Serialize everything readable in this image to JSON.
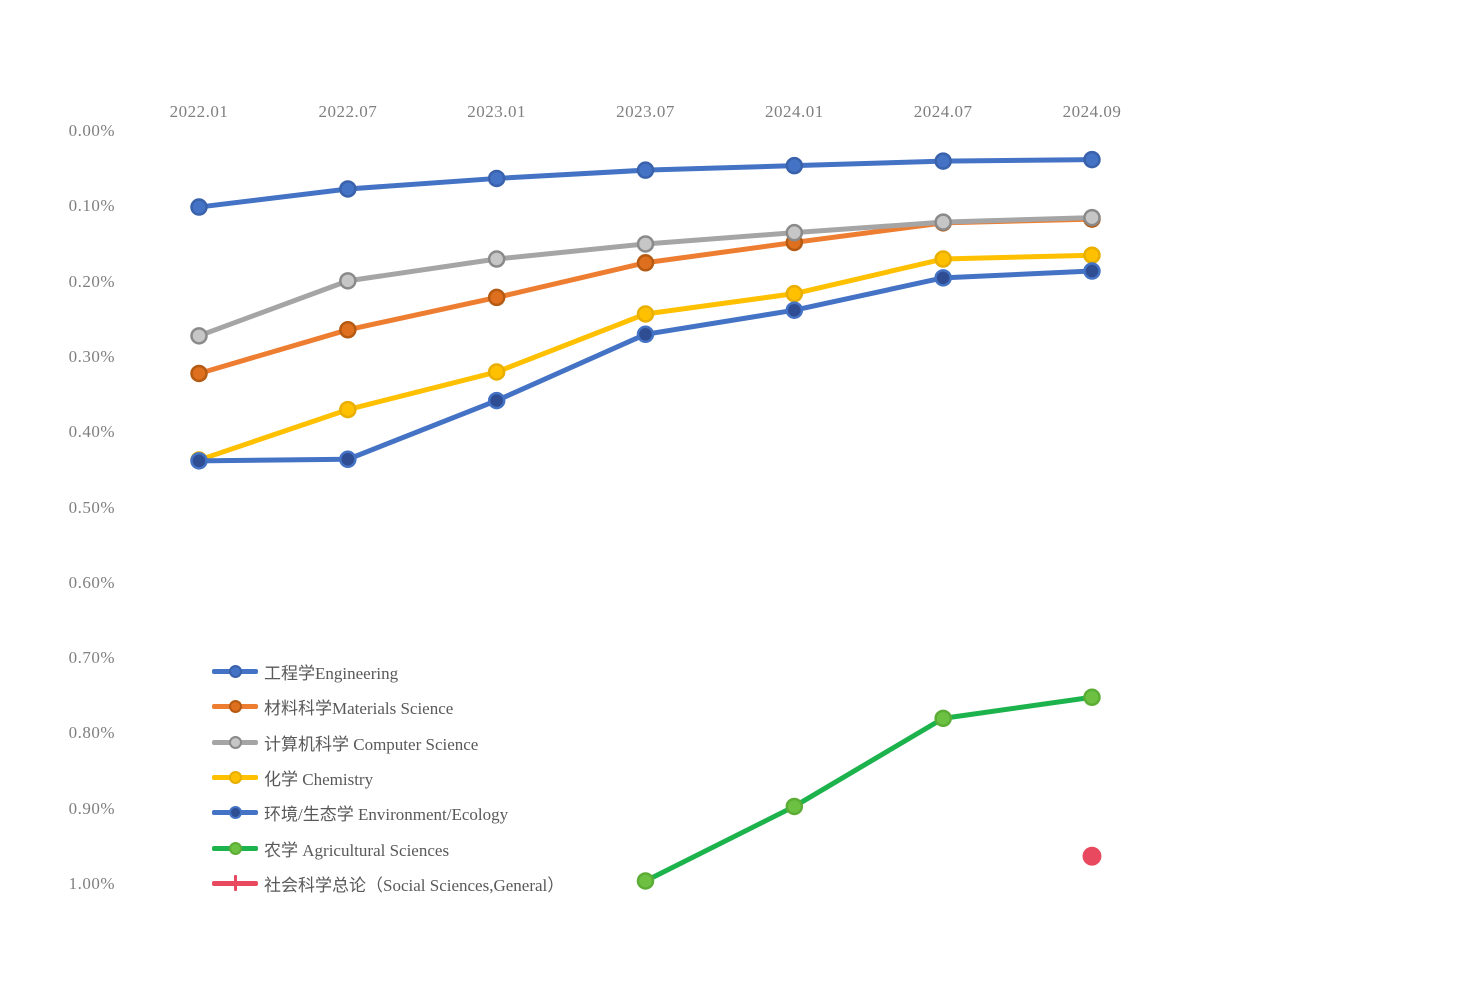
{
  "page": {
    "background_color": "#ffffff",
    "axis_text_color": "#7f7f7f",
    "legend_text_color": "#595959"
  },
  "chart_data": {
    "type": "line",
    "title": "",
    "grid": false,
    "legend_position": "bottom-left-inside",
    "x_axis": {
      "position": "top",
      "categories": [
        "2022.01",
        "2022.07",
        "2023.01",
        "2023.07",
        "2024.01",
        "2024.07",
        "2024.09"
      ]
    },
    "y_axis": {
      "unit": "%",
      "min": 0.0,
      "max": 1.0,
      "tick_step": 0.1,
      "inverted": true,
      "ticks": [
        "0.00%",
        "0.10%",
        "0.20%",
        "0.30%",
        "0.40%",
        "0.50%",
        "0.60%",
        "0.70%",
        "0.80%",
        "0.90%",
        "1.00%"
      ]
    },
    "series": [
      {
        "id": "engineering",
        "label": "工程学Engineering",
        "line_color": "#4472C4",
        "marker": "circle",
        "marker_fill": "#4472C4",
        "marker_stroke": "#3A62AC",
        "values": [
          0.101,
          0.077,
          0.063,
          0.052,
          0.046,
          0.04,
          0.038
        ]
      },
      {
        "id": "materials-science",
        "label": "材料科学Materials Science",
        "line_color": "#ED7D31",
        "marker": "circle",
        "marker_fill": "#DD6F1E",
        "marker_stroke": "#B55A12",
        "values": [
          0.322,
          0.264,
          0.221,
          0.175,
          0.148,
          0.122,
          0.117
        ]
      },
      {
        "id": "computer-science",
        "label": "计算机科学 Computer Science",
        "line_color": "#A5A5A5",
        "marker": "circle",
        "marker_fill": "#C6C6C6",
        "marker_stroke": "#8A8A8A",
        "values": [
          0.272,
          0.199,
          0.17,
          0.15,
          0.135,
          0.121,
          0.115
        ]
      },
      {
        "id": "chemistry",
        "label": "化学 Chemistry",
        "line_color": "#FFC000",
        "marker": "circle",
        "marker_fill": "#FFC000",
        "marker_stroke": "#E8AE00",
        "values": [
          0.437,
          0.37,
          0.32,
          0.243,
          0.216,
          0.17,
          0.165
        ]
      },
      {
        "id": "environment-ecology",
        "label": "环境/生态学 Environment/Ecology",
        "line_color": "#4472C4",
        "marker": "circle",
        "marker_fill": "#2F4D93",
        "marker_stroke": "#4472C4",
        "values": [
          0.438,
          0.436,
          0.358,
          0.27,
          0.238,
          0.195,
          0.186
        ]
      },
      {
        "id": "agricultural-sciences",
        "label": "农学 Agricultural Sciences",
        "line_color": "#1CB24C",
        "marker": "circle",
        "marker_fill": "#6CC143",
        "marker_stroke": "#5CAD35",
        "values": [
          null,
          null,
          null,
          0.996,
          0.897,
          0.78,
          0.752
        ]
      },
      {
        "id": "social-sciences-general",
        "label": "社会科学总论（Social Sciences,General）",
        "line_color": "#E8495F",
        "marker": "circle",
        "marker_fill": "#E8495F",
        "marker_stroke": "#E8495F",
        "legend_marker": "plus",
        "values": [
          null,
          null,
          null,
          null,
          null,
          null,
          0.963
        ]
      }
    ]
  }
}
